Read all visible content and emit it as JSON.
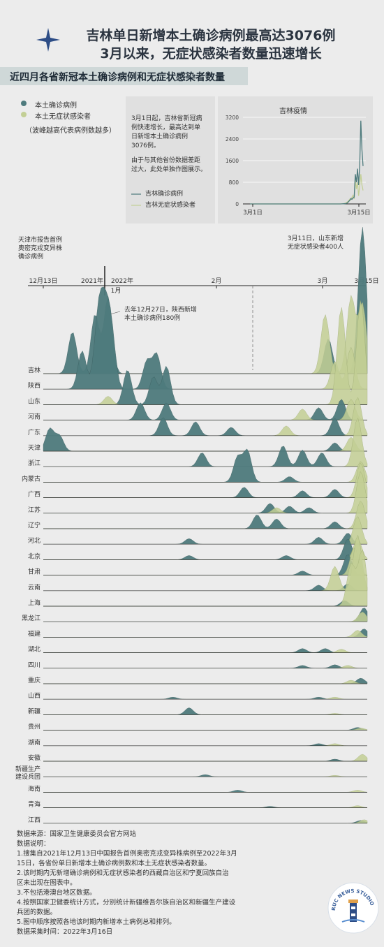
{
  "title": "吉林单日新增本土确诊病例最高达3076例",
  "title2": "3月以来，无症状感染者数量迅速增长",
  "subtitle": "近四月各省新冠本土确诊病例和无症状感染者数量",
  "colors": {
    "confirmed": "#4e7b7d",
    "asymptomatic": "#c3cf95",
    "accent": "#2b3440"
  },
  "legend": {
    "confirmed": "本土确诊病例",
    "asymptomatic": "本土无症状感染者",
    "note": "（波峰越高代表病例数越多）"
  },
  "jilin_note": {
    "line1": "3月1日起，吉林省新冠病",
    "line2": "例快速增长，最高达到单",
    "line3": "日新增本土确诊病例",
    "line4": "3076例。",
    "line5": "由于与其他省份数据差距",
    "line6": "过大，此处单独作图展示。",
    "legend_confirmed": "吉林确诊病例",
    "legend_asym": "吉林无症状感染者"
  },
  "annotations": {
    "tianjin1": "天津市报告首例",
    "tianjin2": "奥密克戎变异株",
    "tianjin3": "确诊病例",
    "shandong1": "3月11日，山东新增",
    "shandong2": "无症状感染者400人",
    "shaanxi1": "去年12月27日，陕西新增",
    "shaanxi2": "本土确诊病例180例"
  },
  "timeline": {
    "d1213": "12月13日",
    "y2021": "2021年",
    "y2022": "2022年",
    "jan": "1月",
    "feb": "2月",
    "mar": "3月",
    "m15": "3月15日"
  },
  "chart_data": [
    {
      "type": "line",
      "title": "吉林疫情",
      "x_ticks": [
        "3月1日",
        "3月15日"
      ],
      "y_ticks": [
        0,
        800,
        1600,
        2400,
        3200
      ],
      "ylim": [
        0,
        3200
      ],
      "series": [
        {
          "name": "吉林确诊病例",
          "values": [
            0,
            0,
            0,
            0,
            0,
            0,
            0,
            0,
            0,
            0,
            0,
            0,
            0,
            0,
            0,
            0,
            0,
            0,
            0,
            0,
            0,
            0,
            0,
            0,
            0,
            0,
            0,
            0,
            0,
            0,
            0,
            0,
            0,
            0,
            0,
            0,
            0,
            0,
            0,
            0,
            0,
            0,
            0,
            0,
            0,
            0,
            0,
            0,
            0,
            0,
            0,
            0,
            0,
            0,
            0,
            0,
            0,
            0,
            0,
            0,
            0,
            0,
            0,
            0,
            0,
            0,
            0,
            0,
            0,
            0,
            0,
            0,
            0,
            0,
            0,
            0,
            0,
            0,
            0,
            0,
            0,
            0,
            1,
            3,
            5,
            7,
            10,
            20,
            40,
            90,
            130,
            200,
            170,
            230,
            250,
            1100,
            800,
            1300,
            700,
            1400,
            3076,
            2000,
            1400
          ]
        },
        {
          "name": "吉林无症状感染者",
          "values": [
            0,
            0,
            0,
            0,
            0,
            0,
            0,
            0,
            0,
            0,
            0,
            0,
            0,
            0,
            0,
            0,
            0,
            0,
            0,
            0,
            0,
            0,
            0,
            0,
            0,
            0,
            0,
            0,
            0,
            0,
            0,
            0,
            0,
            0,
            0,
            0,
            0,
            0,
            0,
            0,
            0,
            0,
            0,
            0,
            0,
            0,
            0,
            0,
            0,
            0,
            0,
            0,
            0,
            0,
            0,
            0,
            0,
            0,
            0,
            0,
            0,
            0,
            0,
            0,
            0,
            0,
            0,
            0,
            0,
            0,
            0,
            0,
            0,
            0,
            0,
            0,
            0,
            0,
            0,
            0,
            0,
            0,
            2,
            4,
            8,
            15,
            30,
            50,
            80,
            110,
            170,
            150,
            250,
            320,
            180,
            900,
            550,
            800,
            300,
            650,
            1100,
            700,
            500
          ]
        }
      ]
    },
    {
      "type": "area",
      "title": "",
      "x_ticks": [
        "12月13日",
        "2021年",
        "2022年 1月",
        "2月",
        "3月",
        "3月15日"
      ],
      "categories": [
        "吉林",
        "陕西",
        "山东",
        "河南",
        "广东",
        "天津",
        "浙江",
        "内蒙古",
        "广西",
        "江苏",
        "辽宁",
        "河北",
        "北京",
        "甘肃",
        "云南",
        "上海",
        "黑龙江",
        "福建",
        "湖北",
        "四川",
        "重庆",
        "山西",
        "新疆",
        "贵州",
        "湖南",
        "安徽",
        "新疆生产建设兵团",
        "海南",
        "青海",
        "江西"
      ],
      "series": [
        {
          "name": "本土确诊病例",
          "values": [
            3076,
            180,
            20,
            60,
            60,
            45,
            30,
            25,
            10,
            25,
            30,
            10,
            25,
            20,
            5,
            15,
            5,
            15,
            3,
            4,
            8,
            3,
            10,
            5,
            3,
            3,
            5,
            3,
            2,
            3
          ]
        },
        {
          "name": "本土无症状感染者",
          "values": [
            1100,
            25,
            400,
            30,
            30,
            20,
            80,
            10,
            15,
            20,
            10,
            30,
            15,
            15,
            80,
            140,
            3,
            15,
            3,
            5,
            8,
            3,
            3,
            3,
            3,
            8,
            3,
            3,
            3,
            5
          ]
        }
      ]
    }
  ],
  "footer": {
    "src": "数据来源：国家卫生健康委员会官方网站",
    "h": "数据说明：",
    "n1a": "1.搜集自2021年12月13日中国报告首例奥密克戎变异株病例至2022年3月",
    "n1b": "15日，各省份单日新增本土确诊病例数和本土无症状感染者数量。",
    "n2a": "2.该时期内无新增确诊病例和无症状感染者的西藏自治区和宁夏回族自治",
    "n2b": "区未出现在图表中。",
    "n3": "3.不包括港澳台地区数据。",
    "n4a": "4.按照国家卫健委统计方式，分别统计新疆维吾尔族自治区和新疆生产建设",
    "n4b": "兵团的数据。",
    "n5": "5.图中顺序按照各地该时期内新增本土病例总和排列。",
    "date": "数据采集时间：2022年3月16日"
  },
  "logo": "RUC NEWS STUDIO"
}
